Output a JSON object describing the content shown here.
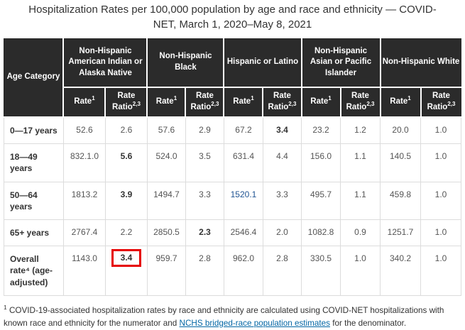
{
  "title": "Hospitalization Rates per 100,000 population by age and race and ethnicity — COVID-NET, March 1, 2020–May 8, 2021",
  "chart_data": {
    "type": "table",
    "title": "Hospitalization Rates per 100,000 population by age and race and ethnicity — COVID-NET, March 1, 2020–May 8, 2021",
    "age_column_header": "Age Category",
    "column_groups": [
      "Non-Hispanic American Indian or Alaska Native",
      "Non-Hispanic Black",
      "Hispanic or Latino",
      "Non-Hispanic Asian or Pacific Islander",
      "Non-Hispanic White"
    ],
    "subheader": {
      "rate_label": "Rate",
      "rate_superscript": "1",
      "ratio_label": "Rate Ratio",
      "ratio_superscript": "2,3"
    },
    "rows": [
      {
        "age_category": "0—17 years",
        "cells": [
          {
            "value": "52.6"
          },
          {
            "value": "2.6"
          },
          {
            "value": "57.6"
          },
          {
            "value": "2.9"
          },
          {
            "value": "67.2"
          },
          {
            "value": "3.4",
            "bold": true
          },
          {
            "value": "23.2"
          },
          {
            "value": "1.2"
          },
          {
            "value": "20.0"
          },
          {
            "value": "1.0"
          }
        ]
      },
      {
        "age_category": "18—49 years",
        "cells": [
          {
            "value": "832.1.0"
          },
          {
            "value": "5.6",
            "bold": true
          },
          {
            "value": "524.0"
          },
          {
            "value": "3.5"
          },
          {
            "value": "631.4"
          },
          {
            "value": "4.4"
          },
          {
            "value": "156.0"
          },
          {
            "value": "1.1"
          },
          {
            "value": "140.5"
          },
          {
            "value": "1.0"
          }
        ]
      },
      {
        "age_category": "50—64 years",
        "cells": [
          {
            "value": "1813.2"
          },
          {
            "value": "3.9",
            "bold": true
          },
          {
            "value": "1494.7"
          },
          {
            "value": "3.3"
          },
          {
            "value": "1520.1",
            "blue": true
          },
          {
            "value": "3.3"
          },
          {
            "value": "495.7"
          },
          {
            "value": "1.1"
          },
          {
            "value": "459.8"
          },
          {
            "value": "1.0"
          }
        ]
      },
      {
        "age_category": "65+ years",
        "cells": [
          {
            "value": "2767.4"
          },
          {
            "value": "2.2"
          },
          {
            "value": "2850.5"
          },
          {
            "value": "2.3",
            "bold": true
          },
          {
            "value": "2546.4"
          },
          {
            "value": "2.0"
          },
          {
            "value": "1082.8"
          },
          {
            "value": "0.9"
          },
          {
            "value": "1251.7"
          },
          {
            "value": "1.0"
          }
        ]
      },
      {
        "age_category": "Overall rate⁴ (age-adjusted)",
        "cells": [
          {
            "value": "1143.0"
          },
          {
            "value": "3.4",
            "bold": true,
            "red_box": true
          },
          {
            "value": "959.7"
          },
          {
            "value": "2.8"
          },
          {
            "value": "962.0"
          },
          {
            "value": "2.8"
          },
          {
            "value": "330.5"
          },
          {
            "value": "1.0"
          },
          {
            "value": "340.2"
          },
          {
            "value": "1.0"
          }
        ]
      }
    ]
  },
  "footnote": {
    "superscript": "1",
    "text_before": " COVID-19-associated hospitalization rates by race and ethnicity are calculated using COVID-NET hospitalizations with known race and ethnicity for the numerator and ",
    "link_text": "NCHS bridged-race population estimates",
    "text_after": " for the denominator."
  },
  "colors": {
    "header_bg": "#2b2b2b",
    "header_text": "#ffffff",
    "body_text": "#555555",
    "emphasis_text": "#333333",
    "highlight_box_red": "#e60000",
    "cell_value_blue": "#205493",
    "footnote_link_blue": "#0567a5",
    "cell_border": "#dcdcdc"
  }
}
